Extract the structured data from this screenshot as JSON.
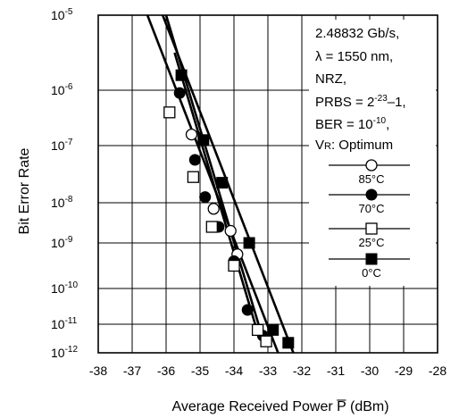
{
  "chart_data": {
    "type": "scatter",
    "xlabel": "Average Received Power",
    "xlabel_symbol": "P",
    "xlabel_unit": "(dBm)",
    "ylabel": "Bit Error Rate",
    "xlim": [
      -38,
      -28
    ],
    "ylim_exp": [
      -12,
      -5
    ],
    "y_scale": "log",
    "grid": true,
    "x_ticks": [
      "-38",
      "-37",
      "-36",
      "-35",
      "-34",
      "-33",
      "-32",
      "-31",
      "-30",
      "-29",
      "-28"
    ],
    "y_ticks": [
      {
        "exp": -5,
        "base": "10",
        "sup": "-5"
      },
      {
        "exp": -6,
        "base": "10",
        "sup": "-6"
      },
      {
        "exp": -7,
        "base": "10",
        "sup": "-7"
      },
      {
        "exp": -8,
        "base": "10",
        "sup": "-8"
      },
      {
        "exp": -9,
        "base": "10",
        "sup": "-9"
      },
      {
        "exp": -10,
        "base": "10",
        "sup": "-10"
      },
      {
        "exp": -11,
        "base": "10",
        "sup": "-11"
      },
      {
        "exp": -12,
        "base": "10",
        "sup": "-12"
      }
    ],
    "annotation": {
      "rate": "2.48832 Gb/s,",
      "wavelength": "λ = 1550 nm,",
      "format": "NRZ,",
      "prbs_prefix": "PRBS = 2",
      "prbs_sup": "-23",
      "prbs_suffix": "–1,",
      "ber_prefix": "BER = 10",
      "ber_sup": "-10",
      "ber_suffix": ",",
      "vr_v": "V",
      "vr_r": "R",
      "vr_rest": ": Optimum"
    },
    "legend_position": "right",
    "series": [
      {
        "name": "85°C",
        "marker": "open-circle",
        "points": [
          [
            -35.25,
            -6.8
          ],
          [
            -34.6,
            -8.15
          ],
          [
            -34.1,
            -8.7
          ],
          [
            -33.9,
            -9.25
          ]
        ],
        "fit": [
          [
            -35.75,
            -5.5
          ],
          [
            -33.3,
            -11.3
          ]
        ]
      },
      {
        "name": "70°C",
        "marker": "filled-circle",
        "points": [
          [
            -35.6,
            -6.05
          ],
          [
            -35.15,
            -7.25
          ],
          [
            -34.85,
            -7.9
          ],
          [
            -34.45,
            -8.6
          ],
          [
            -34.0,
            -9.4
          ],
          [
            -33.6,
            -10.6
          ],
          [
            -33.15,
            -11.4
          ]
        ],
        "fit": [
          [
            -36.0,
            -5.0
          ],
          [
            -33.1,
            -11.7
          ]
        ]
      },
      {
        "name": "25°C",
        "marker": "open-square",
        "points": [
          [
            -35.9,
            -6.4
          ],
          [
            -35.2,
            -7.55
          ],
          [
            -34.65,
            -8.6
          ],
          [
            -34.0,
            -9.5
          ],
          [
            -33.3,
            -11.2
          ],
          [
            -33.05,
            -11.6
          ]
        ],
        "fit": [
          [
            -36.55,
            -5.0
          ],
          [
            -32.7,
            -12.0
          ]
        ]
      },
      {
        "name": "0°C",
        "marker": "filled-square",
        "points": [
          [
            -35.55,
            -5.8
          ],
          [
            -34.9,
            -6.9
          ],
          [
            -34.35,
            -7.65
          ],
          [
            -33.55,
            -9.0
          ],
          [
            -32.85,
            -11.2
          ],
          [
            -32.4,
            -11.65
          ]
        ],
        "fit": [
          [
            -36.1,
            -5.0
          ],
          [
            -32.25,
            -12.0
          ]
        ]
      }
    ]
  }
}
